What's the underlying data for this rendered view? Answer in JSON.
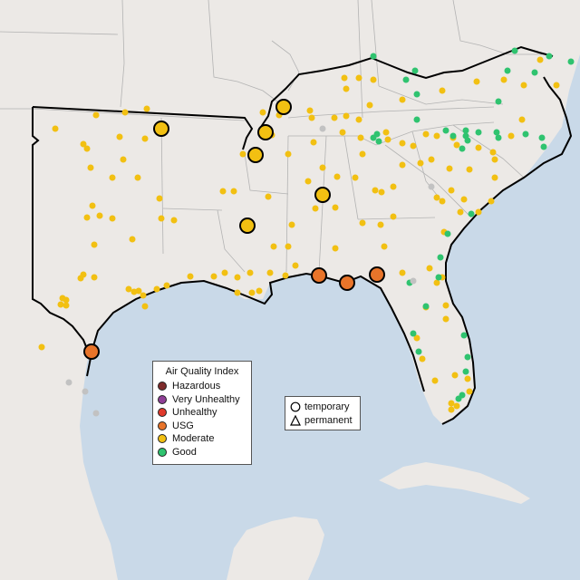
{
  "legend": {
    "title": "Air Quality Index",
    "categories": [
      {
        "label": "Hazardous",
        "color": "#7e2b2b"
      },
      {
        "label": "Very Unhealthy",
        "color": "#8f3f97"
      },
      {
        "label": "Unhealthy",
        "color": "#e03a2c"
      },
      {
        "label": "USG",
        "color": "#e8742a"
      },
      {
        "label": "Moderate",
        "color": "#f2c012"
      },
      {
        "label": "Good",
        "color": "#2fc36f"
      }
    ]
  },
  "shape_legend": {
    "temporary_label": "temporary",
    "permanent_label": "permanent",
    "temporary_icon": "circle-icon",
    "permanent_icon": "triangle-icon"
  },
  "map": {
    "water_color": "#c9d9e8",
    "land_color": "#ece9e6",
    "boundary_color": "#000000"
  }
}
